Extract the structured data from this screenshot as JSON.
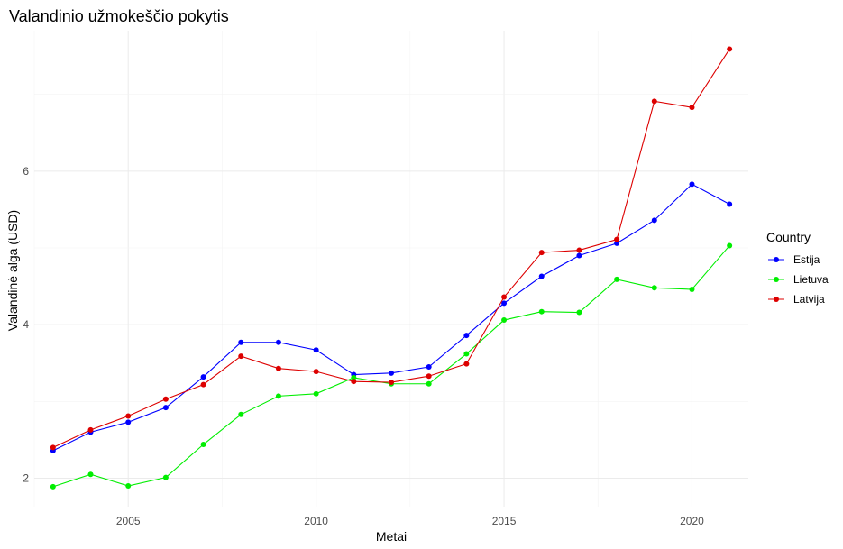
{
  "chart_data": {
    "type": "line",
    "title": "Valandinio užmokeščio pokytis",
    "xlabel": "Metai",
    "ylabel": "Valandinė alga (USD)",
    "x": [
      2003,
      2004,
      2005,
      2006,
      2007,
      2008,
      2009,
      2010,
      2011,
      2012,
      2013,
      2014,
      2015,
      2016,
      2017,
      2018,
      2019,
      2020,
      2021
    ],
    "xlim": [
      2002.5,
      2021.5
    ],
    "ylim": [
      1.63,
      7.83
    ],
    "x_ticks": [
      2005,
      2010,
      2015,
      2020
    ],
    "y_ticks": [
      2,
      4,
      6
    ],
    "grid": true,
    "legend": {
      "title": "Country",
      "position": "right"
    },
    "series": [
      {
        "name": "Estija",
        "color": "#0000ff",
        "values": [
          2.36,
          2.6,
          2.73,
          2.92,
          3.32,
          3.77,
          3.77,
          3.67,
          3.35,
          3.37,
          3.45,
          3.86,
          4.28,
          4.63,
          4.9,
          5.06,
          5.36,
          5.83,
          5.57
        ]
      },
      {
        "name": "Lietuva",
        "color": "#00ee00",
        "values": [
          1.89,
          2.05,
          1.9,
          2.01,
          2.44,
          2.83,
          3.07,
          3.1,
          3.31,
          3.23,
          3.23,
          3.62,
          4.06,
          4.17,
          4.16,
          4.59,
          4.48,
          4.46,
          5.03
        ]
      },
      {
        "name": "Latvija",
        "color": "#dd0000",
        "values": [
          2.4,
          2.63,
          2.81,
          3.03,
          3.22,
          3.59,
          3.43,
          3.39,
          3.26,
          3.25,
          3.33,
          3.49,
          4.36,
          4.94,
          4.97,
          5.11,
          6.91,
          6.83,
          7.59
        ]
      }
    ]
  }
}
